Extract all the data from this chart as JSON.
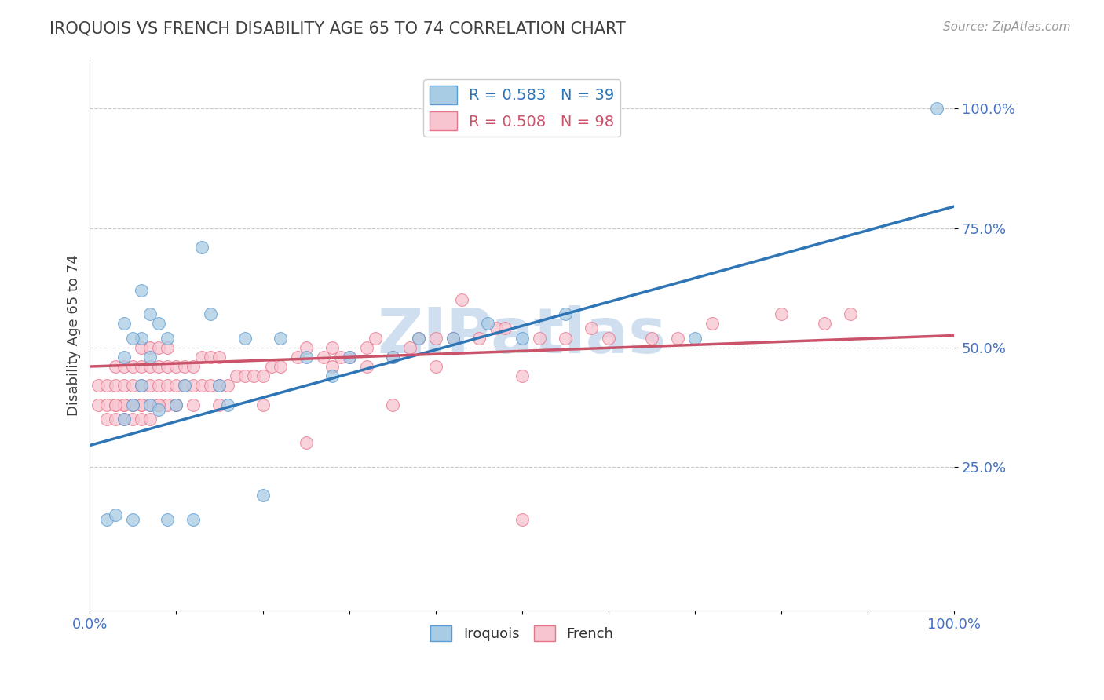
{
  "title": "IROQUOIS VS FRENCH DISABILITY AGE 65 TO 74 CORRELATION CHART",
  "source_text": "Source: ZipAtlas.com",
  "ylabel": "Disability Age 65 to 74",
  "xlim": [
    0,
    1
  ],
  "ylim": [
    -0.05,
    1.1
  ],
  "xticks": [
    0.0,
    0.1,
    0.2,
    0.3,
    0.4,
    0.5,
    0.6,
    0.7,
    0.8,
    0.9,
    1.0
  ],
  "xticklabels": [
    "0.0%",
    "",
    "",
    "",
    "",
    "",
    "",
    "",
    "",
    "",
    "100.0%"
  ],
  "ytick_positions": [
    0.25,
    0.5,
    0.75,
    1.0
  ],
  "yticklabels": [
    "25.0%",
    "50.0%",
    "75.0%",
    "100.0%"
  ],
  "iroquois_color": "#a8cce4",
  "french_color": "#f7c5d0",
  "iroquois_edge_color": "#5b9bd5",
  "french_edge_color": "#e8748a",
  "iroquois_line_color": "#2e75b6",
  "french_line_color": "#c9546a",
  "background_color": "#ffffff",
  "grid_color": "#c8c8c8",
  "title_color": "#404040",
  "tick_label_color": "#4472c4",
  "watermark_color": "#d0dff0",
  "iroquois_R": 0.583,
  "iroquois_N": 39,
  "french_R": 0.508,
  "french_N": 98,
  "iq_line_x0": 0.0,
  "iq_line_y0": 0.295,
  "iq_line_x1": 1.0,
  "iq_line_y1": 0.795,
  "fr_line_x0": 0.0,
  "fr_line_y0": 0.46,
  "fr_line_x1": 1.0,
  "fr_line_y1": 0.525,
  "iroquois_scatter_x": [
    0.02,
    0.03,
    0.04,
    0.04,
    0.05,
    0.05,
    0.06,
    0.06,
    0.07,
    0.07,
    0.08,
    0.08,
    0.09,
    0.09,
    0.1,
    0.11,
    0.12,
    0.14,
    0.15,
    0.16,
    0.18,
    0.2,
    0.22,
    0.25,
    0.28,
    0.3,
    0.35,
    0.38,
    0.42,
    0.46,
    0.5,
    0.55,
    0.7,
    0.04,
    0.05,
    0.06,
    0.07,
    0.13,
    0.98
  ],
  "iroquois_scatter_y": [
    0.14,
    0.15,
    0.55,
    0.35,
    0.14,
    0.38,
    0.52,
    0.62,
    0.38,
    0.57,
    0.37,
    0.55,
    0.14,
    0.52,
    0.38,
    0.42,
    0.14,
    0.57,
    0.42,
    0.38,
    0.52,
    0.19,
    0.52,
    0.48,
    0.44,
    0.48,
    0.48,
    0.52,
    0.52,
    0.55,
    0.52,
    0.57,
    0.52,
    0.48,
    0.52,
    0.42,
    0.48,
    0.71,
    1.0
  ],
  "french_scatter_x": [
    0.01,
    0.01,
    0.02,
    0.02,
    0.02,
    0.03,
    0.03,
    0.03,
    0.03,
    0.04,
    0.04,
    0.04,
    0.04,
    0.05,
    0.05,
    0.05,
    0.05,
    0.06,
    0.06,
    0.06,
    0.06,
    0.06,
    0.07,
    0.07,
    0.07,
    0.07,
    0.07,
    0.08,
    0.08,
    0.08,
    0.08,
    0.09,
    0.09,
    0.09,
    0.09,
    0.1,
    0.1,
    0.1,
    0.11,
    0.11,
    0.12,
    0.12,
    0.12,
    0.13,
    0.13,
    0.14,
    0.14,
    0.15,
    0.15,
    0.16,
    0.17,
    0.18,
    0.19,
    0.2,
    0.21,
    0.22,
    0.24,
    0.25,
    0.27,
    0.28,
    0.29,
    0.3,
    0.32,
    0.33,
    0.35,
    0.37,
    0.38,
    0.4,
    0.42,
    0.43,
    0.45,
    0.47,
    0.48,
    0.5,
    0.52,
    0.55,
    0.58,
    0.6,
    0.65,
    0.68,
    0.72,
    0.8,
    0.85,
    0.88,
    0.5,
    0.25,
    0.35,
    0.4,
    0.32,
    0.28,
    0.2,
    0.15,
    0.1,
    0.08,
    0.06,
    0.05,
    0.04,
    0.03
  ],
  "french_scatter_y": [
    0.38,
    0.42,
    0.35,
    0.38,
    0.42,
    0.35,
    0.38,
    0.42,
    0.46,
    0.35,
    0.38,
    0.42,
    0.46,
    0.35,
    0.38,
    0.42,
    0.46,
    0.35,
    0.38,
    0.42,
    0.46,
    0.5,
    0.35,
    0.38,
    0.42,
    0.46,
    0.5,
    0.38,
    0.42,
    0.46,
    0.5,
    0.38,
    0.42,
    0.46,
    0.5,
    0.38,
    0.42,
    0.46,
    0.42,
    0.46,
    0.38,
    0.42,
    0.46,
    0.42,
    0.48,
    0.42,
    0.48,
    0.42,
    0.48,
    0.42,
    0.44,
    0.44,
    0.44,
    0.44,
    0.46,
    0.46,
    0.48,
    0.5,
    0.48,
    0.5,
    0.48,
    0.48,
    0.5,
    0.52,
    0.48,
    0.5,
    0.52,
    0.52,
    0.52,
    0.6,
    0.52,
    0.54,
    0.54,
    0.44,
    0.52,
    0.52,
    0.54,
    0.52,
    0.52,
    0.52,
    0.55,
    0.57,
    0.55,
    0.57,
    0.14,
    0.3,
    0.38,
    0.46,
    0.46,
    0.46,
    0.38,
    0.38,
    0.38,
    0.38,
    0.38,
    0.38,
    0.38,
    0.38
  ]
}
